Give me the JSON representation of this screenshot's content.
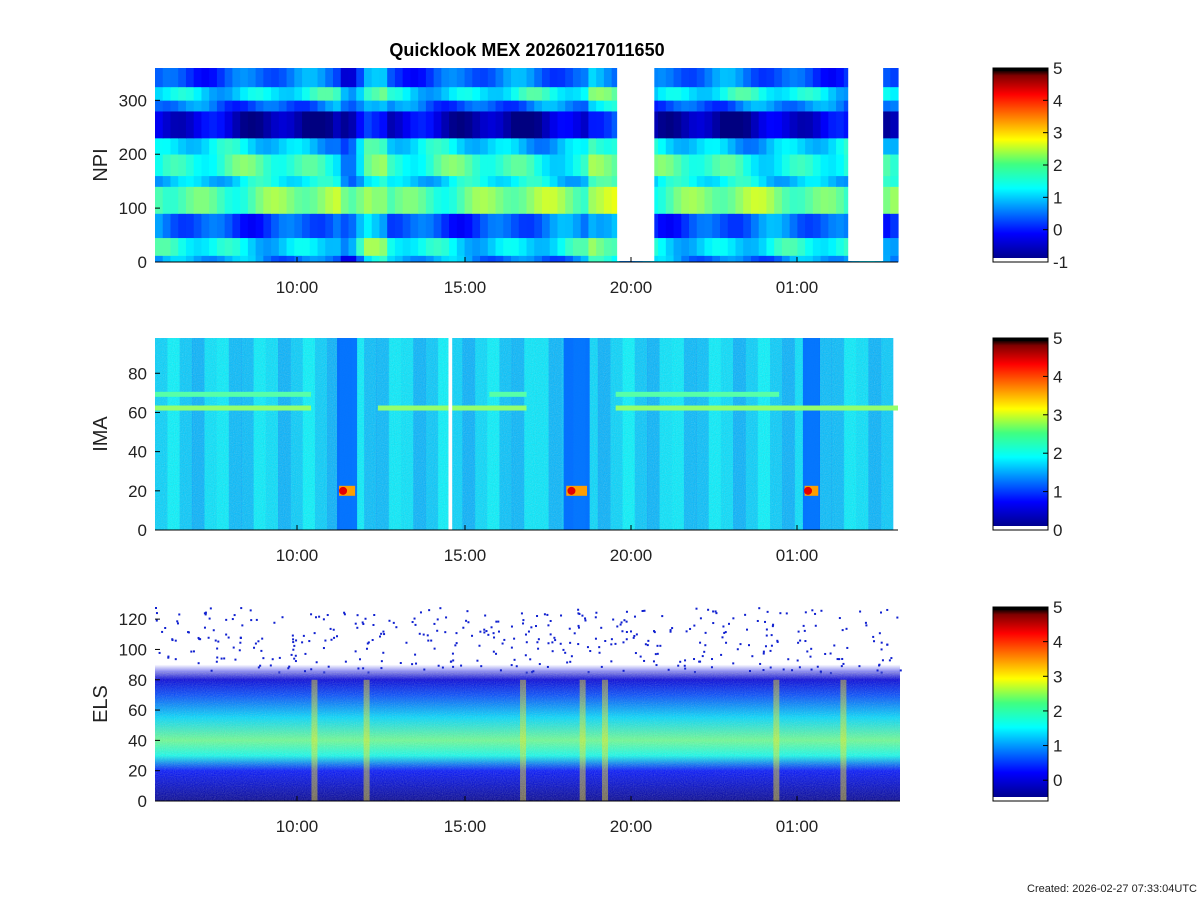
{
  "figure": {
    "title": "Quicklook MEX 20260217011650",
    "footer": "Created: 2026-02-27 07:33:04UTC"
  },
  "chart_data": [
    {
      "type": "heatmap",
      "name": "NPI",
      "ylabel": "NPI",
      "x_tick_labels": [
        "10:00",
        "15:00",
        "20:00",
        "01:00"
      ],
      "y_ticks": [
        0,
        100,
        200,
        300
      ],
      "ylim": [
        0,
        360
      ],
      "colorbar": {
        "ticks": [
          5,
          4,
          3,
          2,
          1,
          0,
          -1
        ],
        "range": [
          -1,
          5
        ]
      },
      "rows": [
        {
          "y0": 0,
          "y1": 12,
          "level": 0.6
        },
        {
          "y0": 12,
          "y1": 45,
          "level": 1.2
        },
        {
          "y0": 45,
          "y1": 90,
          "level": 0.3
        },
        {
          "y0": 90,
          "y1": 140,
          "level": 1.9
        },
        {
          "y0": 140,
          "y1": 160,
          "level": 1.1
        },
        {
          "y0": 160,
          "y1": 200,
          "level": 1.5
        },
        {
          "y0": 200,
          "y1": 230,
          "level": 1.0
        },
        {
          "y0": 230,
          "y1": 280,
          "level": -0.6
        },
        {
          "y0": 280,
          "y1": 300,
          "level": 0.4
        },
        {
          "y0": 300,
          "y1": 325,
          "level": 1.2
        },
        {
          "y0": 325,
          "y1": 360,
          "level": 0.3
        }
      ],
      "data_gaps": [
        [
          0.622,
          0.672
        ],
        [
          0.933,
          0.98
        ]
      ]
    },
    {
      "type": "heatmap",
      "name": "IMA",
      "ylabel": "IMA",
      "x_tick_labels": [
        "10:00",
        "15:00",
        "20:00",
        "01:00"
      ],
      "y_ticks": [
        0,
        20,
        40,
        60,
        80
      ],
      "ylim": [
        0,
        98
      ],
      "colorbar": {
        "ticks": [
          5,
          4,
          3,
          2,
          1,
          0
        ],
        "range": [
          0,
          5
        ]
      },
      "background_level": 1.8,
      "bands": [
        {
          "y": 62,
          "level": 2.6,
          "x_ranges": [
            [
              0.0,
              0.21
            ],
            [
              0.3,
              0.5
            ],
            [
              0.62,
              1.0
            ]
          ]
        },
        {
          "y": 69,
          "level": 2.3,
          "x_ranges": [
            [
              0.0,
              0.21
            ],
            [
              0.45,
              0.5
            ],
            [
              0.62,
              0.84
            ]
          ]
        }
      ],
      "data_gaps": [
        [
          0.395,
          0.4
        ]
      ],
      "low_level_intervals": [
        [
          0.245,
          0.272
        ],
        [
          0.55,
          0.585
        ],
        [
          0.872,
          0.895
        ]
      ]
    },
    {
      "type": "heatmap",
      "name": "ELS",
      "ylabel": "ELS",
      "x_tick_labels": [
        "10:00",
        "15:00",
        "20:00",
        "01:00"
      ],
      "y_ticks": [
        0,
        20,
        40,
        60,
        80,
        100,
        120
      ],
      "ylim": [
        0,
        128
      ],
      "colorbar": {
        "ticks": [
          5,
          4,
          3,
          2,
          1,
          0
        ],
        "range": [
          -0.6,
          5
        ]
      },
      "energy_profile": [
        {
          "y": 0,
          "level": -0.5
        },
        {
          "y": 20,
          "level": 0.2
        },
        {
          "y": 30,
          "level": 1.6
        },
        {
          "y": 40,
          "level": 2.1
        },
        {
          "y": 55,
          "level": 1.3
        },
        {
          "y": 70,
          "level": 0.5
        },
        {
          "y": 80,
          "level": -0.1
        },
        {
          "y": 90,
          "level": -0.5
        },
        {
          "y": 128,
          "level": -0.6
        }
      ]
    }
  ]
}
